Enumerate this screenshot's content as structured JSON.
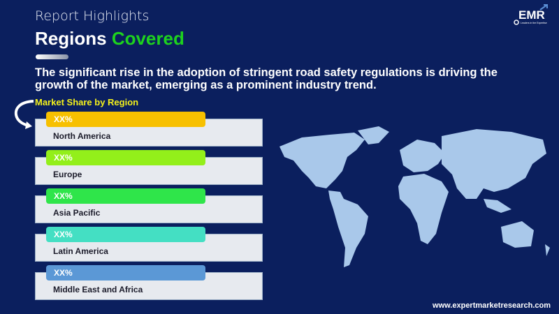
{
  "header": {
    "supertitle": "Report Highlights",
    "title_white": "Regions",
    "title_green": "Covered"
  },
  "description": "The significant rise in the adoption of stringent road safety regulations is driving the growth of the market, emerging as a prominent industry trend.",
  "market_share_heading": "Market Share by Region",
  "regions": [
    {
      "name": "North America",
      "value": "XX%",
      "color": "#f7c000"
    },
    {
      "name": "Europe",
      "value": "XX%",
      "color": "#93ef1a"
    },
    {
      "name": "Asia Pacific",
      "value": "XX%",
      "color": "#2fe54a"
    },
    {
      "name": "Latin America",
      "value": "XX%",
      "color": "#44dfc3"
    },
    {
      "name": "Middle East and Africa",
      "value": "XX%",
      "color": "#5b98d6"
    }
  ],
  "logo": {
    "text": "EMR",
    "tagline": "Leaders in the Expertise"
  },
  "footer": {
    "url": "www.expertmarketresearch.com"
  },
  "colors": {
    "background": "#0b1f5e",
    "accent": "#1ed21e",
    "map": "#a9c8ea"
  }
}
